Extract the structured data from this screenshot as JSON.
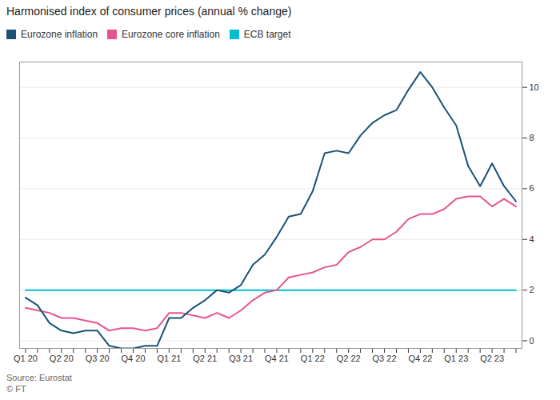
{
  "chart_data": {
    "type": "line",
    "title": "Harmonised index of consumer prices (annual % change)",
    "source": "Source: Eurostat",
    "credit": "© FT",
    "categories": [
      "Q1 20",
      null,
      null,
      "Q2 20",
      null,
      null,
      "Q3 20",
      null,
      null,
      "Q4 20",
      null,
      null,
      "Q1 21",
      null,
      null,
      "Q2 21",
      null,
      null,
      "Q3 21",
      null,
      null,
      "Q4 21",
      null,
      null,
      "Q1 22",
      null,
      null,
      "Q2 22",
      null,
      null,
      "Q3 22",
      null,
      null,
      "Q4 22",
      null,
      null,
      "Q1 23",
      null,
      null,
      "Q2 23",
      null,
      null
    ],
    "series": [
      {
        "name": "Eurozone inflation",
        "color": "#1a5276",
        "values": [
          1.7,
          1.4,
          0.7,
          0.4,
          0.3,
          0.4,
          0.4,
          -0.2,
          -0.3,
          -0.3,
          -0.2,
          -0.2,
          0.9,
          0.9,
          1.3,
          1.6,
          2.0,
          1.9,
          2.2,
          3.0,
          3.4,
          4.1,
          4.9,
          5.0,
          5.9,
          7.4,
          7.5,
          7.4,
          8.1,
          8.6,
          8.9,
          9.1,
          9.9,
          10.6,
          10.0,
          9.2,
          8.5,
          6.9,
          6.1,
          7.0,
          6.1,
          5.5
        ]
      },
      {
        "name": "Eurozone core inflation",
        "color": "#e8538f",
        "values": [
          1.3,
          1.2,
          1.1,
          0.9,
          0.9,
          0.8,
          0.7,
          0.4,
          0.5,
          0.5,
          0.4,
          0.5,
          1.1,
          1.1,
          1.0,
          0.9,
          1.1,
          0.9,
          1.2,
          1.6,
          1.9,
          2.0,
          2.5,
          2.6,
          2.7,
          2.9,
          3.0,
          3.5,
          3.7,
          4.0,
          4.0,
          4.3,
          4.8,
          5.0,
          5.0,
          5.2,
          5.6,
          5.7,
          5.7,
          5.3,
          5.6,
          5.3
        ]
      },
      {
        "name": "ECB target",
        "color": "#00bcd4",
        "values": [
          2.0,
          2.0,
          2.0,
          2.0,
          2.0,
          2.0,
          2.0,
          2.0,
          2.0,
          2.0,
          2.0,
          2.0,
          2.0,
          2.0,
          2.0,
          2.0,
          2.0,
          2.0,
          2.0,
          2.0,
          2.0,
          2.0,
          2.0,
          2.0,
          2.0,
          2.0,
          2.0,
          2.0,
          2.0,
          2.0,
          2.0,
          2.0,
          2.0,
          2.0,
          2.0,
          2.0,
          2.0,
          2.0,
          2.0,
          2.0,
          2.0,
          2.0
        ]
      }
    ],
    "ylim": [
      -0.3,
      11.0
    ],
    "yticks": [
      0,
      2,
      4,
      6,
      8,
      10
    ],
    "grid": true,
    "legend": "top"
  }
}
